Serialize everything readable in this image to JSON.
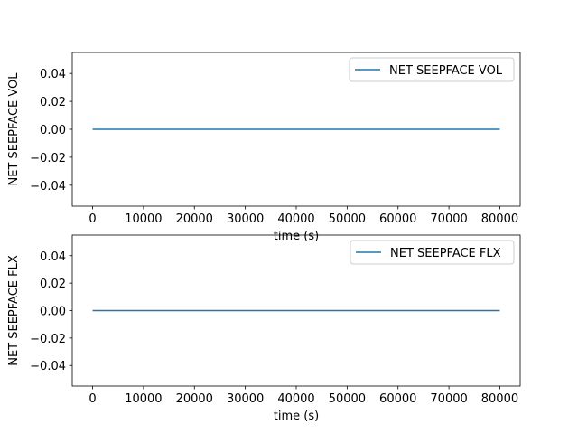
{
  "chart_data": [
    {
      "type": "line",
      "xlabel": "time (s)",
      "ylabel": "NET SEEPFACE VOL",
      "xlim": [
        -4000,
        84000
      ],
      "ylim": [
        -0.055,
        0.055
      ],
      "xticks": [
        0,
        10000,
        20000,
        30000,
        40000,
        50000,
        60000,
        70000,
        80000
      ],
      "yticks": [
        -0.04,
        -0.02,
        0.0,
        0.02,
        0.04
      ],
      "xtick_labels": [
        "0",
        "10000",
        "20000",
        "30000",
        "40000",
        "50000",
        "60000",
        "70000",
        "80000"
      ],
      "ytick_labels": [
        "−0.04",
        "−0.02",
        "0.00",
        "0.02",
        "0.04"
      ],
      "grid": false,
      "legend_position": "top-right",
      "series": [
        {
          "name": "NET SEEPFACE VOL",
          "color": "#1f77b4",
          "x": [
            0,
            80000
          ],
          "y": [
            0.0,
            0.0
          ]
        }
      ]
    },
    {
      "type": "line",
      "xlabel": "time (s)",
      "ylabel": "NET SEEPFACE FLX",
      "xlim": [
        -4000,
        84000
      ],
      "ylim": [
        -0.055,
        0.055
      ],
      "xticks": [
        0,
        10000,
        20000,
        30000,
        40000,
        50000,
        60000,
        70000,
        80000
      ],
      "yticks": [
        -0.04,
        -0.02,
        0.0,
        0.02,
        0.04
      ],
      "xtick_labels": [
        "0",
        "10000",
        "20000",
        "30000",
        "40000",
        "50000",
        "60000",
        "70000",
        "80000"
      ],
      "ytick_labels": [
        "−0.04",
        "−0.02",
        "0.00",
        "0.02",
        "0.04"
      ],
      "grid": false,
      "legend_position": "top-right",
      "series": [
        {
          "name": "NET SEEPFACE FLX",
          "color": "#1f77b4",
          "x": [
            0,
            80000
          ],
          "y": [
            0.0,
            0.0
          ]
        }
      ]
    }
  ]
}
